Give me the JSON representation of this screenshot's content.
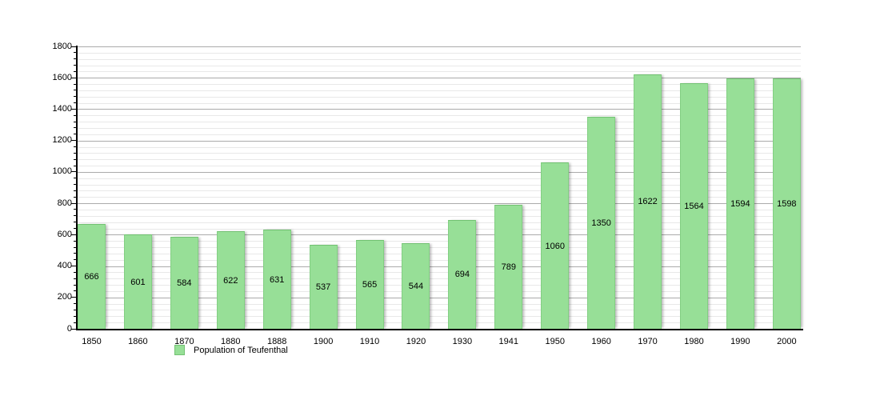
{
  "chart_data": {
    "type": "bar",
    "title": "",
    "categories": [
      "1850",
      "1860",
      "1870",
      "1880",
      "1888",
      "1900",
      "1910",
      "1920",
      "1930",
      "1941",
      "1950",
      "1960",
      "1970",
      "1980",
      "1990",
      "2000"
    ],
    "values": [
      666,
      601,
      584,
      622,
      631,
      537,
      565,
      544,
      694,
      789,
      1060,
      1350,
      1622,
      1564,
      1594,
      1598
    ],
    "xlabel": "",
    "ylabel": "",
    "ylim": [
      0,
      1800
    ],
    "y_major_step": 200,
    "y_minor_step": 40,
    "y_tick_labels": [
      "0",
      "200",
      "400",
      "600",
      "800",
      "1000",
      "1200",
      "1400",
      "1600",
      "1800"
    ],
    "grid": "on",
    "bar_color": "#97DF97",
    "legend": [
      {
        "label": "Population of Teufenthal",
        "color": "#97DF97"
      }
    ],
    "legend_position": "bottom-left",
    "value_labels": "inside-middle"
  }
}
